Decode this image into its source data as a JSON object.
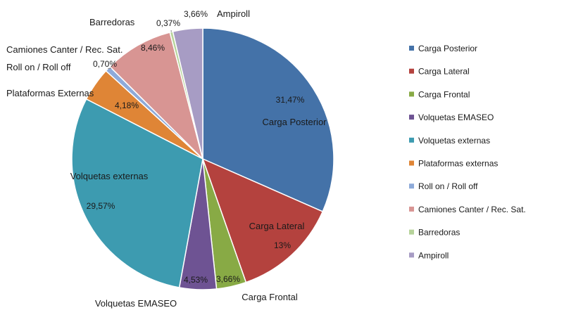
{
  "chart_data": {
    "type": "pie",
    "start_angle_deg": 0,
    "direction": "clockwise",
    "legend_position": "right",
    "slices": [
      {
        "name": "Carga Posterior",
        "value": 31.47,
        "value_label": "31,47%",
        "category_label": "Carga Posterior",
        "color": "#4472a8"
      },
      {
        "name": "Carga Lateral",
        "value": 13,
        "value_label": "13%",
        "category_label": "Carga Lateral",
        "color": "#b4423e"
      },
      {
        "name": "Carga Frontal",
        "value": 3.66,
        "value_label": "3,66%",
        "category_label": "Carga Frontal",
        "color": "#88aa45"
      },
      {
        "name": "Volquetas EMASEO",
        "value": 4.53,
        "value_label": "4,53%",
        "category_label": "Volquetas EMASEO",
        "color": "#6e5393"
      },
      {
        "name": "Volquetas externas",
        "value": 29.57,
        "value_label": "29,57%",
        "category_label": "Volquetas externas",
        "color": "#3d9bb0"
      },
      {
        "name": "Plataformas externas",
        "value": 4.18,
        "value_label": "4,18%",
        "category_label": "Plataformas Externas",
        "color": "#df8536"
      },
      {
        "name": "Roll on / Roll off",
        "value": 0.7,
        "value_label": "0,70%",
        "category_label": "Roll on / Roll off",
        "color": "#8eaad9"
      },
      {
        "name": "Camiones Canter / Rec. Sat.",
        "value": 8.46,
        "value_label": "8,46%",
        "category_label": "Camiones Canter / Rec. Sat.",
        "color": "#d89593"
      },
      {
        "name": "Barredoras",
        "value": 0.37,
        "value_label": "0,37%",
        "category_label": "Barredoras",
        "color": "#b6d39a"
      },
      {
        "name": "Ampiroll",
        "value": 3.66,
        "value_label": "3,66%",
        "category_label": "Ampiroll",
        "color": "#a79cc4"
      }
    ]
  }
}
